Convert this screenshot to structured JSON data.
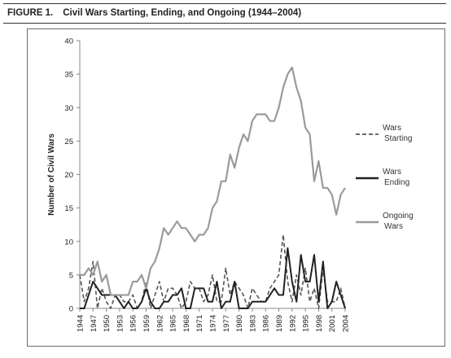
{
  "figure": {
    "label": "FIGURE 1.",
    "title": "Civil Wars Starting, Ending, and Ongoing (1944–2004)"
  },
  "chart_data": {
    "type": "line",
    "title": "Civil Wars Starting, Ending, and Ongoing (1944–2004)",
    "xlabel": "",
    "ylabel": "Number of Civil Wars",
    "ylim": [
      0,
      40
    ],
    "yticks": [
      0,
      5,
      10,
      15,
      20,
      25,
      30,
      35,
      40
    ],
    "xlim": [
      1944,
      2004
    ],
    "xticks": [
      1944,
      1947,
      1950,
      1953,
      1956,
      1959,
      1962,
      1965,
      1968,
      1971,
      1974,
      1977,
      1980,
      1983,
      1986,
      1989,
      1992,
      1995,
      1998,
      2001,
      2004
    ],
    "grid": false,
    "legend_position": "right",
    "x": [
      1944,
      1945,
      1946,
      1947,
      1948,
      1949,
      1950,
      1951,
      1952,
      1953,
      1954,
      1955,
      1956,
      1957,
      1958,
      1959,
      1960,
      1961,
      1962,
      1963,
      1964,
      1965,
      1966,
      1967,
      1968,
      1969,
      1970,
      1971,
      1972,
      1973,
      1974,
      1975,
      1976,
      1977,
      1978,
      1979,
      1980,
      1981,
      1982,
      1983,
      1984,
      1985,
      1986,
      1987,
      1988,
      1989,
      1990,
      1991,
      1992,
      1993,
      1994,
      1995,
      1996,
      1997,
      1998,
      1999,
      2000,
      2001,
      2002,
      2003,
      2004
    ],
    "series": [
      {
        "name": "Wars Starting",
        "color": "#555555",
        "dash": "dashed",
        "values": [
          5,
          1,
          3,
          7,
          0,
          3,
          1,
          0,
          2,
          2,
          1,
          1,
          2,
          0,
          1,
          4,
          0,
          2,
          4,
          1,
          3,
          3,
          2,
          0,
          1,
          4,
          3,
          3,
          1,
          2,
          5,
          1,
          1,
          6,
          2,
          4,
          3,
          2,
          0,
          3,
          2,
          1,
          1,
          3,
          4,
          5,
          11,
          4,
          1,
          5,
          2,
          6,
          1,
          3,
          0,
          6,
          1,
          1,
          1,
          3,
          0
        ]
      },
      {
        "name": "Wars Ending",
        "color": "#222222",
        "dash": "solid",
        "values": [
          0,
          0,
          2,
          4,
          3,
          2,
          2,
          2,
          2,
          1,
          0,
          1,
          0,
          0,
          1,
          3,
          1,
          0,
          0,
          1,
          1,
          2,
          2,
          3,
          0,
          0,
          3,
          3,
          3,
          1,
          1,
          4,
          0,
          1,
          1,
          4,
          0,
          0,
          0,
          1,
          1,
          1,
          1,
          2,
          3,
          2,
          2,
          9,
          4,
          1,
          8,
          4,
          4,
          8,
          1,
          7,
          0,
          1,
          4,
          2,
          0
        ]
      },
      {
        "name": "Ongoing Wars",
        "color": "#9a9a9a",
        "dash": "solid",
        "values": [
          5,
          5,
          6,
          5,
          7,
          4,
          5,
          2,
          2,
          2,
          2,
          2,
          4,
          4,
          5,
          3,
          6,
          7,
          9,
          12,
          11,
          12,
          13,
          12,
          12,
          11,
          10,
          11,
          11,
          12,
          15,
          16,
          19,
          19,
          23,
          21,
          24,
          26,
          25,
          28,
          29,
          29,
          29,
          28,
          28,
          30,
          33,
          35,
          36,
          33,
          31,
          27,
          26,
          19,
          22,
          18,
          18,
          17,
          14,
          17,
          18
        ]
      }
    ]
  }
}
